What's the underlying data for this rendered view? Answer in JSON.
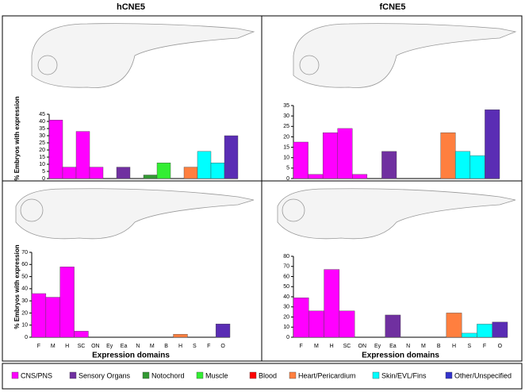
{
  "chart_data": [
    {
      "type": "bar",
      "title": "hCNE5",
      "ylabel": "% Embryos with expression",
      "categories": [
        null,
        null,
        null,
        null,
        null,
        null,
        null,
        null,
        null,
        null,
        null,
        null,
        null,
        null
      ],
      "values": [
        41,
        8,
        33,
        8,
        0,
        8,
        0,
        2.5,
        11,
        0,
        8,
        19,
        11,
        30
      ],
      "colors": [
        "#ff00ff",
        "#ff00ff",
        "#ff00ff",
        "#ff00ff",
        "#ff00ff",
        "#7030a0",
        "#7030a0",
        "#339933",
        "#33ee33",
        "#ff0000",
        "#ff7f3f",
        "#00ffff",
        "#00ffff",
        "#5a2db4"
      ],
      "ylim": [
        0,
        45
      ],
      "yticks": [
        0,
        5,
        10,
        15,
        20,
        25,
        30,
        35,
        40,
        45
      ]
    },
    {
      "type": "bar",
      "title": "fCNE5",
      "categories": [
        null,
        null,
        null,
        null,
        null,
        null,
        null,
        null,
        null,
        null,
        null,
        null,
        null,
        null
      ],
      "values": [
        17.5,
        2,
        22,
        24,
        2,
        0,
        13,
        0,
        0,
        0,
        22,
        13,
        11,
        33
      ],
      "colors": [
        "#ff00ff",
        "#ff00ff",
        "#ff00ff",
        "#ff00ff",
        "#ff00ff",
        "#7030a0",
        "#7030a0",
        "#339933",
        "#33ee33",
        "#ff0000",
        "#ff7f3f",
        "#00ffff",
        "#00ffff",
        "#5a2db4"
      ],
      "ylim": [
        0,
        35
      ],
      "yticks": [
        0,
        5,
        10,
        15,
        20,
        25,
        30,
        35
      ]
    },
    {
      "type": "bar",
      "ylabel": "% Embryos with expression",
      "xlabel": "Expression domains",
      "categories": [
        "F",
        "M",
        "H",
        "SC",
        "ON",
        "Ey",
        "Ea",
        "N",
        "M",
        "B",
        "H",
        "S",
        "F",
        "O"
      ],
      "values": [
        36,
        33,
        58,
        5,
        0,
        0,
        0,
        0,
        0,
        0,
        2.5,
        0,
        0,
        11
      ],
      "colors": [
        "#ff00ff",
        "#ff00ff",
        "#ff00ff",
        "#ff00ff",
        "#ff00ff",
        "#7030a0",
        "#7030a0",
        "#339933",
        "#33ee33",
        "#ff0000",
        "#ff7f3f",
        "#00ffff",
        "#00ffff",
        "#5a2db4"
      ],
      "ylim": [
        0,
        70
      ],
      "yticks": [
        0,
        10,
        20,
        30,
        40,
        50,
        60,
        70
      ]
    },
    {
      "type": "bar",
      "xlabel": "Expression domains",
      "categories": [
        "F",
        "M",
        "H",
        "SC",
        "ON",
        "Ey",
        "Ea",
        "N",
        "M",
        "B",
        "H",
        "S",
        "F",
        "O"
      ],
      "values": [
        39,
        26,
        67,
        26,
        0,
        0,
        22,
        0,
        0,
        0,
        24,
        4,
        13,
        15
      ],
      "colors": [
        "#ff00ff",
        "#ff00ff",
        "#ff00ff",
        "#ff00ff",
        "#ff00ff",
        "#7030a0",
        "#7030a0",
        "#339933",
        "#33ee33",
        "#ff0000",
        "#ff7f3f",
        "#00ffff",
        "#00ffff",
        "#5a2db4"
      ],
      "ylim": [
        0,
        80
      ],
      "yticks": [
        0,
        10,
        20,
        30,
        40,
        50,
        60,
        70,
        80
      ]
    }
  ],
  "legend": [
    {
      "name": "CNS/PNS",
      "color": "#ff00ff"
    },
    {
      "name": "Sensory Organs",
      "color": "#7030a0"
    },
    {
      "name": "Notochord",
      "color": "#339933"
    },
    {
      "name": "Muscle",
      "color": "#33ee33"
    },
    {
      "name": "Blood",
      "color": "#ff0000"
    },
    {
      "name": "Heart/Pericardium",
      "color": "#ff7f3f"
    },
    {
      "name": "Skin/EVL/Fins",
      "color": "#00ffff"
    },
    {
      "name": "Other/Unspecified",
      "color": "#3333cc"
    }
  ]
}
